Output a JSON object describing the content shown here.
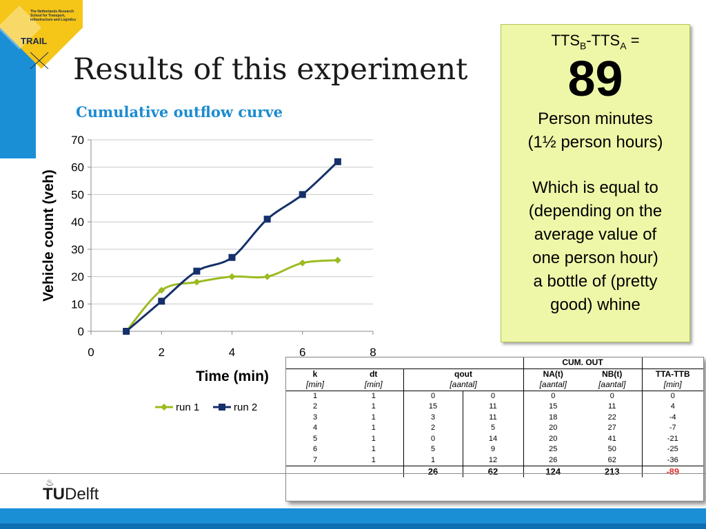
{
  "logo": {
    "org_text": "The Netherlands Research School for Transport, Infrastructure and Logistics",
    "name": "TRAIL"
  },
  "title": "Results of this experiment",
  "colors": {
    "accent": "#1c8bd0",
    "run1": "#9bbb1f",
    "run2": "#15306a",
    "callout_bg": "#eef7a8",
    "negative": "#e0302a"
  },
  "chart_data": {
    "type": "line",
    "title": "Cumulative outflow curve",
    "xlabel": "Time (min)",
    "ylabel": "Vehicle count (veh)",
    "xlim": [
      0,
      8
    ],
    "ylim": [
      0,
      70
    ],
    "xticks": [
      0,
      2,
      4,
      6,
      8
    ],
    "yticks": [
      0,
      10,
      20,
      30,
      40,
      50,
      60,
      70
    ],
    "grid": "horizontal",
    "legend": "bottom",
    "series": [
      {
        "name": "run 1",
        "x": [
          1,
          2,
          3,
          4,
          5,
          6,
          7
        ],
        "y": [
          0,
          15,
          18,
          20,
          20,
          25,
          26
        ],
        "marker": "diamond"
      },
      {
        "name": "run 2",
        "x": [
          1,
          2,
          3,
          4,
          5,
          6,
          7
        ],
        "y": [
          0,
          11,
          22,
          27,
          41,
          50,
          62
        ],
        "marker": "square"
      }
    ]
  },
  "callout": {
    "eq_a": "TTS",
    "eq_sub_b": "B",
    "eq_mid": "-TTS",
    "eq_sub_a": "A",
    "eq_end": " =",
    "value": "89",
    "line1": "Person minutes",
    "line2": "(1½ person hours)",
    "line3": "Which is equal to",
    "line4": "(depending on the",
    "line5": "average value of",
    "line6": "one person hour)",
    "line7": "a bottle of (pretty",
    "line8": "good) whine"
  },
  "table": {
    "group_header": "CUM. OUT",
    "headers": [
      "k",
      "dt",
      "qout",
      "NA(t)",
      "NB(t)",
      "TTA-TTB"
    ],
    "units": [
      "[min]",
      "[min]",
      "[aantal]",
      "[aantal]",
      "[aantal]",
      "[min]"
    ],
    "rows": [
      [
        "1",
        "1",
        "0",
        "0",
        "0",
        "0",
        "0"
      ],
      [
        "2",
        "1",
        "15",
        "11",
        "15",
        "11",
        "4"
      ],
      [
        "3",
        "1",
        "3",
        "11",
        "18",
        "22",
        "-4"
      ],
      [
        "4",
        "1",
        "2",
        "5",
        "20",
        "27",
        "-7"
      ],
      [
        "5",
        "1",
        "0",
        "14",
        "20",
        "41",
        "-21"
      ],
      [
        "6",
        "1",
        "5",
        "9",
        "25",
        "50",
        "-25"
      ],
      [
        "7",
        "1",
        "1",
        "12",
        "26",
        "62",
        "-36"
      ]
    ],
    "totals": [
      "26",
      "62",
      "124",
      "213",
      "-89"
    ]
  },
  "footer": {
    "brand_tu": "TU",
    "brand_delft": "Delft"
  }
}
